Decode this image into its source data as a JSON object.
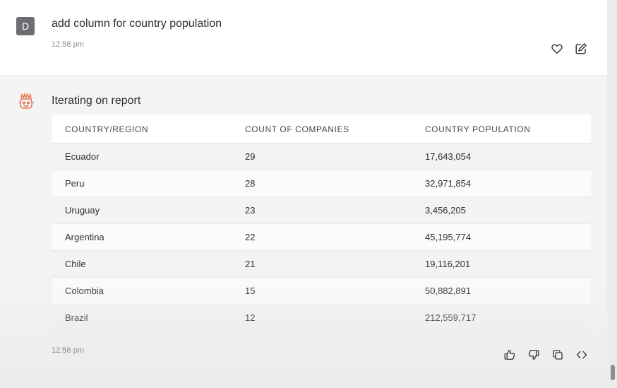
{
  "user_message": {
    "avatar_letter": "D",
    "text": "add column for country population",
    "timestamp": "12:58 pm",
    "actions": {
      "like_icon": "heart-icon",
      "edit_icon": "pencil-square-icon"
    }
  },
  "bot_message": {
    "title": "Iterating on report",
    "timestamp": "12:58 pm",
    "avatar_icon": "robot-face-icon",
    "accent_color": "#e8795c",
    "table": {
      "headers": [
        "COUNTRY/REGION",
        "COUNT OF COMPANIES",
        "COUNTRY POPULATION"
      ],
      "rows": [
        [
          "Ecuador",
          "29",
          "17,643,054"
        ],
        [
          "Peru",
          "28",
          "32,971,854"
        ],
        [
          "Uruguay",
          "23",
          "3,456,205"
        ],
        [
          "Argentina",
          "22",
          "45,195,774"
        ],
        [
          "Chile",
          "21",
          "19,116,201"
        ],
        [
          "Colombia",
          "15",
          "50,882,891"
        ],
        [
          "Brazil",
          "12",
          "212,559,717"
        ]
      ]
    },
    "actions": {
      "thumbs_up_icon": "thumbs-up-icon",
      "thumbs_down_icon": "thumbs-down-icon",
      "copy_icon": "copy-icon",
      "code_icon": "code-icon"
    }
  }
}
